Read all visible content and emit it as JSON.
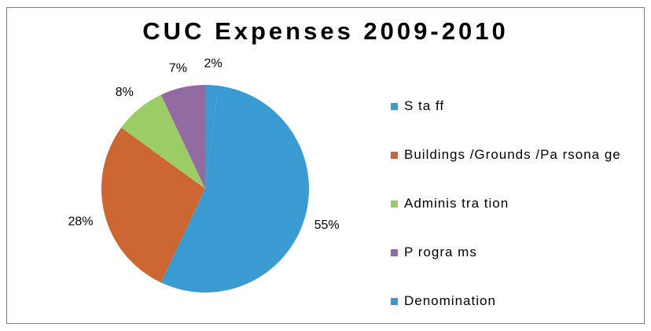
{
  "chart_data": {
    "type": "pie",
    "title": "CUC Expenses 2009-2010",
    "categories": [
      "Staff",
      "Buildings/Grounds/Parsonage",
      "Administration",
      "Programs",
      "Denomination"
    ],
    "values": [
      55,
      28,
      8,
      7,
      2
    ],
    "data_labels": [
      "55%",
      "28%",
      "8%",
      "7%",
      "2%"
    ],
    "colors": [
      "#3a9ad2",
      "#cc6633",
      "#9bcc66",
      "#936ba3",
      "#3a9ad2"
    ],
    "legend_position": "right"
  },
  "legend": {
    "items": [
      {
        "label": "S ta ff",
        "color": "#3a9ad2"
      },
      {
        "label": "Buildings /Grounds /Pa rsona ge",
        "color": "#cc6633"
      },
      {
        "label": "Adminis tra tion",
        "color": "#9bcc66"
      },
      {
        "label": "P rogra ms",
        "color": "#936ba3"
      },
      {
        "label": "Denomination",
        "color": "#3a9ad2"
      }
    ]
  }
}
